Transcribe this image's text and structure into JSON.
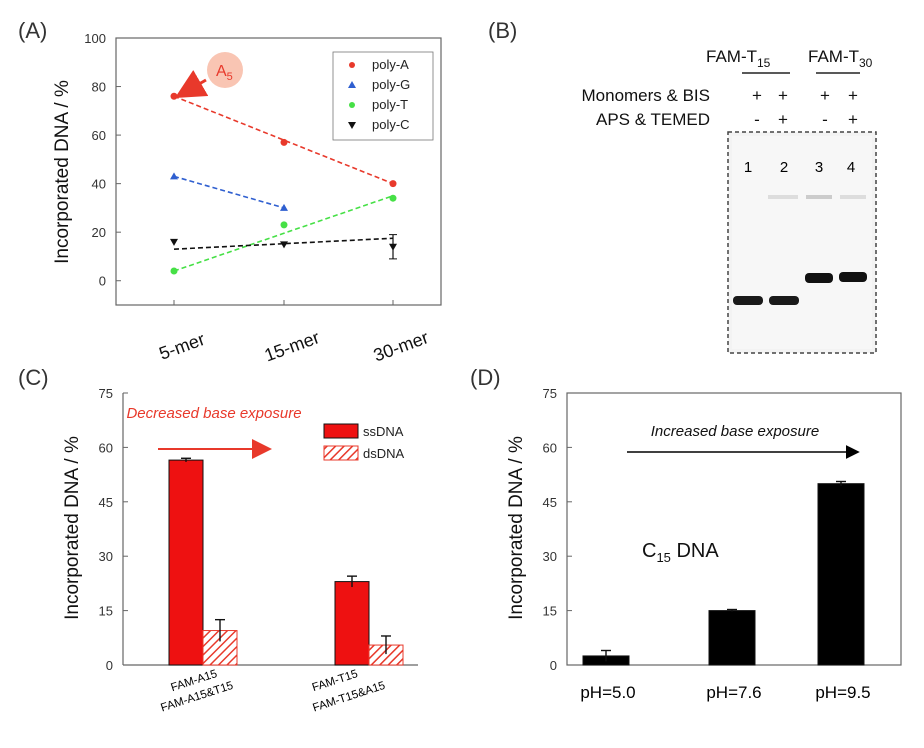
{
  "figure": {
    "panel_labels": [
      "(A)",
      "(B)",
      "(C)",
      "(D)"
    ]
  },
  "chart_data": [
    {
      "panel": "(A)",
      "type": "line",
      "ylabel": "Incorporated DNA / %",
      "ylim": [
        -10,
        100
      ],
      "yticks": [
        0,
        20,
        40,
        60,
        80,
        100
      ],
      "categories": [
        "5-mer",
        "15-mer",
        "30-mer"
      ],
      "series": [
        {
          "name": "poly-A",
          "color": "#e8392b",
          "marker": "circle",
          "values": [
            76,
            57,
            40
          ]
        },
        {
          "name": "poly-G",
          "color": "#2f5fd0",
          "marker": "triangle-up",
          "values": [
            43,
            30,
            null
          ]
        },
        {
          "name": "poly-T",
          "color": "#46e046",
          "marker": "circle",
          "values": [
            4,
            23,
            34
          ]
        },
        {
          "name": "poly-C",
          "color": "#111111",
          "marker": "triangle-down",
          "values": [
            16,
            15,
            14
          ]
        }
      ],
      "dashed_fits": [
        {
          "series": "poly-A",
          "from": [
            0,
            76
          ],
          "to": [
            2,
            40
          ]
        },
        {
          "series": "poly-G",
          "from": [
            0,
            43
          ],
          "to": [
            1,
            30
          ]
        },
        {
          "series": "poly-T",
          "from": [
            0,
            4
          ],
          "to": [
            2,
            35
          ]
        },
        {
          "series": "poly-C",
          "from": [
            0,
            13
          ],
          "to": [
            2,
            17.5
          ]
        }
      ],
      "error_bars": [
        {
          "series": "poly-C",
          "index": 2,
          "value": 14,
          "err": 5
        }
      ],
      "legend": "top-right",
      "annotation": {
        "text": "A",
        "subscript": "5",
        "points_to": {
          "series": "poly-A",
          "index": 0
        }
      }
    },
    {
      "panel": "(B)",
      "type": "gel",
      "groups": [
        {
          "name": "FAM-T",
          "subscript": "15"
        },
        {
          "name": "FAM-T",
          "subscript": "30"
        }
      ],
      "row_labels": [
        "Monomers & BIS",
        "APS & TEMED"
      ],
      "rows": [
        [
          "+",
          "+",
          "+",
          "+"
        ],
        [
          "-",
          "+",
          "-",
          "+"
        ]
      ],
      "lanes": [
        "1",
        "2",
        "3",
        "4"
      ]
    },
    {
      "panel": "(C)",
      "type": "bar",
      "ylabel": "Incorporated DNA / %",
      "ylim": [
        0,
        75
      ],
      "yticks": [
        0,
        15,
        30,
        45,
        60,
        75
      ],
      "categories": [
        "FAM-A15",
        "FAM-A15&T15",
        "FAM-T15",
        "FAM-T15&A15"
      ],
      "bar_types": [
        "ssDNA",
        "dsDNA",
        "ssDNA",
        "dsDNA"
      ],
      "values": [
        56.5,
        9.5,
        23,
        5.5
      ],
      "errors": [
        0.5,
        3,
        1.5,
        2.5
      ],
      "legend": [
        {
          "name": "ssDNA",
          "color": "#ee1111"
        },
        {
          "name": "dsDNA",
          "color": "#ee1111",
          "pattern": "hatched"
        }
      ],
      "annotation": "Decreased base exposure"
    },
    {
      "panel": "(D)",
      "type": "bar",
      "ylabel": "Incorporated DNA / %",
      "ylim": [
        0,
        75
      ],
      "yticks": [
        0,
        15,
        30,
        45,
        60,
        75
      ],
      "categories": [
        "pH=5.0",
        "pH=7.6",
        "pH=9.5"
      ],
      "values": [
        2.5,
        15,
        50
      ],
      "errors": [
        1.5,
        0.3,
        0.6
      ],
      "color": "#000000",
      "annotation": "Increased base exposure",
      "inset_label": {
        "text": "C",
        "subscript": "15",
        "suffix": " DNA"
      }
    }
  ]
}
